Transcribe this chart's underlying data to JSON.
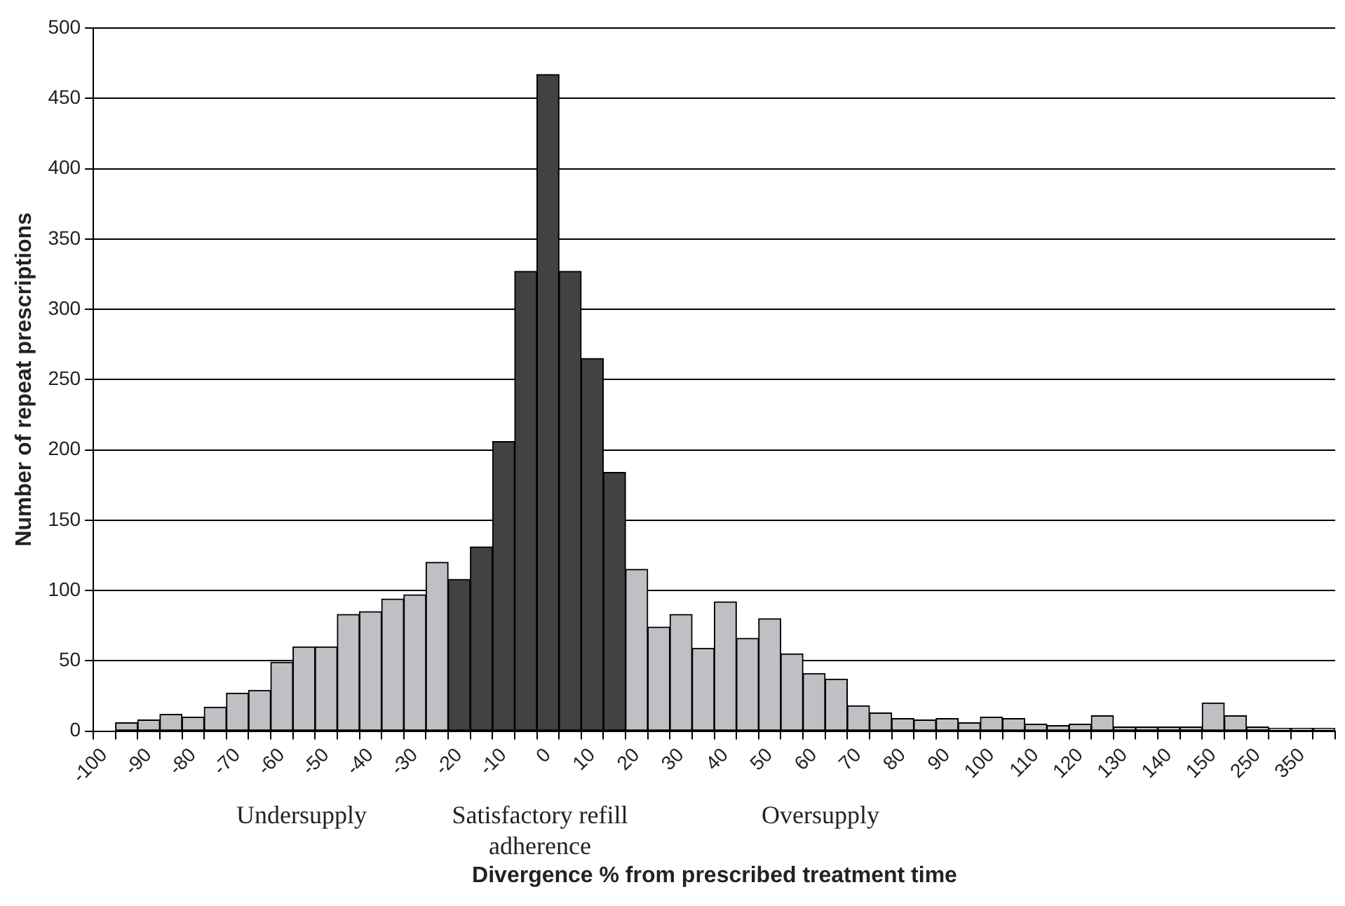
{
  "chart_data": {
    "type": "bar",
    "xlabel": "Divergence % from prescribed treatment time",
    "ylabel": "Number of repeat prescriptions",
    "categories": [
      "-100",
      null,
      "-90",
      null,
      "-80",
      null,
      "-70",
      null,
      "-60",
      null,
      "-50",
      null,
      "-40",
      null,
      "-30",
      null,
      "-20",
      null,
      "-10",
      null,
      "0",
      null,
      "10",
      null,
      "20",
      null,
      "30",
      null,
      "40",
      null,
      "50",
      null,
      "60",
      null,
      "70",
      null,
      "80",
      null,
      "90",
      null,
      "100",
      null,
      "110",
      null,
      "120",
      null,
      "130",
      null,
      "140",
      null,
      "150",
      null,
      "250",
      null,
      "350",
      null
    ],
    "values": [
      0,
      6,
      8,
      12,
      10,
      17,
      27,
      29,
      49,
      60,
      60,
      83,
      85,
      94,
      97,
      120,
      108,
      131,
      206,
      327,
      467,
      327,
      265,
      184,
      115,
      74,
      83,
      59,
      92,
      66,
      80,
      55,
      41,
      37,
      18,
      13,
      9,
      8,
      9,
      6,
      10,
      9,
      5,
      4,
      5,
      11,
      3,
      3,
      3,
      3,
      20,
      11,
      3,
      2,
      2,
      2
    ],
    "colors": [
      "#bfc0c4",
      "#bfc0c4",
      "#bfc0c4",
      "#bfc0c4",
      "#bfc0c4",
      "#bfc0c4",
      "#bfc0c4",
      "#bfc0c4",
      "#bfc0c4",
      "#bfc0c4",
      "#bfc0c4",
      "#bfc0c4",
      "#bfc0c4",
      "#bfc0c4",
      "#bfc0c4",
      "#bfc0c4",
      "#404244",
      "#404244",
      "#404244",
      "#404244",
      "#404244",
      "#404244",
      "#404244",
      "#404244",
      "#bfc0c4",
      "#bfc0c4",
      "#bfc0c4",
      "#bfc0c4",
      "#bfc0c4",
      "#bfc0c4",
      "#bfc0c4",
      "#bfc0c4",
      "#bfc0c4",
      "#bfc0c4",
      "#bfc0c4",
      "#bfc0c4",
      "#bfc0c4",
      "#bfc0c4",
      "#bfc0c4",
      "#bfc0c4",
      "#bfc0c4",
      "#bfc0c4",
      "#bfc0c4",
      "#bfc0c4",
      "#bfc0c4",
      "#bfc0c4",
      "#bfc0c4",
      "#bfc0c4",
      "#bfc0c4",
      "#bfc0c4",
      "#bfc0c4",
      "#bfc0c4",
      "#bfc0c4",
      "#bfc0c4",
      "#bfc0c4",
      "#bfc0c4"
    ],
    "ylim": [
      0,
      500
    ],
    "yticks": [
      0,
      50,
      100,
      150,
      200,
      250,
      300,
      350,
      400,
      450,
      500
    ],
    "grid": "y",
    "legend": false,
    "annotations": [
      "Undersupply",
      "Satisfactory refill adherence",
      "Oversupply"
    ]
  }
}
